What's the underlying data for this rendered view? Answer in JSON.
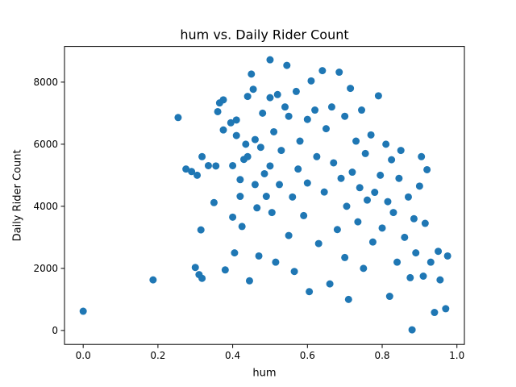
{
  "chart_data": {
    "type": "scatter",
    "title": "hum vs. Daily Rider Count",
    "xlabel": "hum",
    "ylabel": "Daily Rider Count",
    "xlim": [
      -0.05,
      1.02
    ],
    "ylim": [
      -450,
      9150
    ],
    "x_ticks": [
      0.0,
      0.2,
      0.4,
      0.6,
      0.8,
      1.0
    ],
    "x_tick_labels": [
      "0.0",
      "0.2",
      "0.4",
      "0.6",
      "0.8",
      "1.0"
    ],
    "y_ticks": [
      0,
      2000,
      4000,
      6000,
      8000
    ],
    "y_tick_labels": [
      "0",
      "2000",
      "4000",
      "6000",
      "8000"
    ],
    "grid": false,
    "marker_color": "#1f77b4",
    "points_shown": [
      [
        0.0,
        620
      ],
      [
        0.187,
        1630
      ],
      [
        0.254,
        6860
      ],
      [
        0.275,
        5200
      ],
      [
        0.29,
        5120
      ],
      [
        0.305,
        5000
      ],
      [
        0.315,
        3240
      ],
      [
        0.318,
        5600
      ],
      [
        0.3,
        2030
      ],
      [
        0.31,
        1800
      ],
      [
        0.318,
        1680
      ],
      [
        0.335,
        5310
      ],
      [
        0.35,
        4120
      ],
      [
        0.355,
        5300
      ],
      [
        0.36,
        7050
      ],
      [
        0.365,
        7330
      ],
      [
        0.375,
        7430
      ],
      [
        0.375,
        6460
      ],
      [
        0.38,
        1950
      ],
      [
        0.395,
        6690
      ],
      [
        0.4,
        5310
      ],
      [
        0.4,
        3650
      ],
      [
        0.405,
        2500
      ],
      [
        0.41,
        6780
      ],
      [
        0.41,
        6280
      ],
      [
        0.42,
        4860
      ],
      [
        0.42,
        4320
      ],
      [
        0.425,
        3350
      ],
      [
        0.43,
        5510
      ],
      [
        0.435,
        6000
      ],
      [
        0.44,
        7540
      ],
      [
        0.44,
        5600
      ],
      [
        0.445,
        1600
      ],
      [
        0.45,
        8260
      ],
      [
        0.455,
        7770
      ],
      [
        0.46,
        6150
      ],
      [
        0.46,
        4700
      ],
      [
        0.465,
        3950
      ],
      [
        0.47,
        2400
      ],
      [
        0.475,
        5900
      ],
      [
        0.48,
        7000
      ],
      [
        0.485,
        5050
      ],
      [
        0.49,
        4320
      ],
      [
        0.5,
        7500
      ],
      [
        0.5,
        5300
      ],
      [
        0.5,
        8720
      ],
      [
        0.505,
        3800
      ],
      [
        0.51,
        6400
      ],
      [
        0.515,
        2200
      ],
      [
        0.52,
        7600
      ],
      [
        0.525,
        4700
      ],
      [
        0.53,
        5800
      ],
      [
        0.54,
        7200
      ],
      [
        0.545,
        8540
      ],
      [
        0.55,
        6900
      ],
      [
        0.55,
        3060
      ],
      [
        0.56,
        4300
      ],
      [
        0.565,
        1900
      ],
      [
        0.57,
        7700
      ],
      [
        0.575,
        5200
      ],
      [
        0.58,
        6100
      ],
      [
        0.59,
        3700
      ],
      [
        0.6,
        6800
      ],
      [
        0.6,
        4750
      ],
      [
        0.605,
        1250
      ],
      [
        0.61,
        8040
      ],
      [
        0.62,
        7100
      ],
      [
        0.625,
        5600
      ],
      [
        0.63,
        2800
      ],
      [
        0.64,
        8370
      ],
      [
        0.645,
        4460
      ],
      [
        0.65,
        6500
      ],
      [
        0.66,
        1500
      ],
      [
        0.665,
        7200
      ],
      [
        0.67,
        5400
      ],
      [
        0.68,
        3250
      ],
      [
        0.685,
        8320
      ],
      [
        0.69,
        4900
      ],
      [
        0.7,
        6900
      ],
      [
        0.7,
        2350
      ],
      [
        0.705,
        4000
      ],
      [
        0.71,
        1000
      ],
      [
        0.715,
        7800
      ],
      [
        0.72,
        5100
      ],
      [
        0.73,
        6100
      ],
      [
        0.735,
        3500
      ],
      [
        0.74,
        4600
      ],
      [
        0.745,
        7100
      ],
      [
        0.75,
        2000
      ],
      [
        0.755,
        5700
      ],
      [
        0.76,
        4200
      ],
      [
        0.77,
        6300
      ],
      [
        0.775,
        2850
      ],
      [
        0.78,
        4450
      ],
      [
        0.79,
        7560
      ],
      [
        0.795,
        5000
      ],
      [
        0.8,
        3300
      ],
      [
        0.81,
        6000
      ],
      [
        0.815,
        4150
      ],
      [
        0.82,
        1100
      ],
      [
        0.825,
        5500
      ],
      [
        0.83,
        3800
      ],
      [
        0.84,
        2200
      ],
      [
        0.845,
        4900
      ],
      [
        0.85,
        5800
      ],
      [
        0.86,
        3000
      ],
      [
        0.87,
        4300
      ],
      [
        0.875,
        1700
      ],
      [
        0.88,
        20
      ],
      [
        0.885,
        3600
      ],
      [
        0.89,
        2500
      ],
      [
        0.9,
        4650
      ],
      [
        0.905,
        5600
      ],
      [
        0.91,
        1750
      ],
      [
        0.915,
        3450
      ],
      [
        0.92,
        5180
      ],
      [
        0.93,
        2200
      ],
      [
        0.94,
        580
      ],
      [
        0.95,
        2550
      ],
      [
        0.955,
        1630
      ],
      [
        0.97,
        700
      ],
      [
        0.975,
        2400
      ]
    ]
  }
}
